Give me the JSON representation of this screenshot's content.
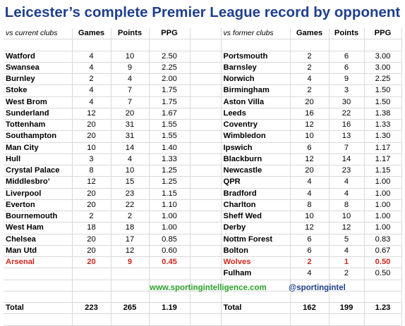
{
  "title": "Leicester’s complete Premier League record by opponent",
  "headers": {
    "current_label": "vs current clubs",
    "former_label": "vs former clubs",
    "games": "Games",
    "points": "Points",
    "ppg": "PPG"
  },
  "current_clubs": [
    {
      "club": "Watford",
      "games": "4",
      "points": "10",
      "ppg": "2.50"
    },
    {
      "club": "Swansea",
      "games": "4",
      "points": "9",
      "ppg": "2.25"
    },
    {
      "club": "Burnley",
      "games": "2",
      "points": "4",
      "ppg": "2.00"
    },
    {
      "club": "Stoke",
      "games": "4",
      "points": "7",
      "ppg": "1.75"
    },
    {
      "club": "West Brom",
      "games": "4",
      "points": "7",
      "ppg": "1.75"
    },
    {
      "club": "Sunderland",
      "games": "12",
      "points": "20",
      "ppg": "1.67"
    },
    {
      "club": "Tottenham",
      "games": "20",
      "points": "31",
      "ppg": "1.55"
    },
    {
      "club": "Southampton",
      "games": "20",
      "points": "31",
      "ppg": "1.55"
    },
    {
      "club": "Man City",
      "games": "10",
      "points": "14",
      "ppg": "1.40"
    },
    {
      "club": "Hull",
      "games": "3",
      "points": "4",
      "ppg": "1.33"
    },
    {
      "club": "Crystal Palace",
      "games": "8",
      "points": "10",
      "ppg": "1.25"
    },
    {
      "club": "Middlesbro’",
      "games": "12",
      "points": "15",
      "ppg": "1.25"
    },
    {
      "club": "Liverpool",
      "games": "20",
      "points": "23",
      "ppg": "1.15"
    },
    {
      "club": "Everton",
      "games": "20",
      "points": "22",
      "ppg": "1.10"
    },
    {
      "club": "Bournemouth",
      "games": "2",
      "points": "2",
      "ppg": "1.00"
    },
    {
      "club": "West Ham",
      "games": "18",
      "points": "18",
      "ppg": "1.00"
    },
    {
      "club": "Chelsea",
      "games": "20",
      "points": "17",
      "ppg": "0.85"
    },
    {
      "club": "Man Utd",
      "games": "20",
      "points": "12",
      "ppg": "0.60"
    },
    {
      "club": "Arsenal",
      "games": "20",
      "points": "9",
      "ppg": "0.45"
    }
  ],
  "former_clubs": [
    {
      "club": "Portsmouth",
      "games": "2",
      "points": "6",
      "ppg": "3.00"
    },
    {
      "club": "Barnsley",
      "games": "2",
      "points": "6",
      "ppg": "3.00"
    },
    {
      "club": "Norwich",
      "games": "4",
      "points": "9",
      "ppg": "2.25"
    },
    {
      "club": "Birmingham",
      "games": "2",
      "points": "3",
      "ppg": "1.50"
    },
    {
      "club": "Aston Villa",
      "games": "20",
      "points": "30",
      "ppg": "1.50"
    },
    {
      "club": "Leeds",
      "games": "16",
      "points": "22",
      "ppg": "1.38"
    },
    {
      "club": "Coventry",
      "games": "12",
      "points": "16",
      "ppg": "1.33"
    },
    {
      "club": "Wimbledon",
      "games": "10",
      "points": "13",
      "ppg": "1.30"
    },
    {
      "club": "Ipswich",
      "games": "6",
      "points": "7",
      "ppg": "1.17"
    },
    {
      "club": "Blackburn",
      "games": "12",
      "points": "14",
      "ppg": "1.17"
    },
    {
      "club": "Newcastle",
      "games": "20",
      "points": "23",
      "ppg": "1.15"
    },
    {
      "club": "QPR",
      "games": "4",
      "points": "4",
      "ppg": "1.00"
    },
    {
      "club": "Bradford",
      "games": "4",
      "points": "4",
      "ppg": "1.00"
    },
    {
      "club": "Charlton",
      "games": "8",
      "points": "8",
      "ppg": "1.00"
    },
    {
      "club": "Sheff Wed",
      "games": "10",
      "points": "10",
      "ppg": "1.00"
    },
    {
      "club": "Derby",
      "games": "12",
      "points": "12",
      "ppg": "1.00"
    },
    {
      "club": "Nottm Forest",
      "games": "6",
      "points": "5",
      "ppg": "0.83"
    },
    {
      "club": "Bolton",
      "games": "6",
      "points": "4",
      "ppg": "0.67"
    },
    {
      "club": "Wolves",
      "games": "2",
      "points": "1",
      "ppg": "0.50"
    },
    {
      "club": "Fulham",
      "games": "4",
      "points": "2",
      "ppg": "0.50"
    }
  ],
  "totals": {
    "label": "Total",
    "current": {
      "games": "223",
      "points": "265",
      "ppg": "1.19"
    },
    "former": {
      "games": "162",
      "points": "199",
      "ppg": "1.23"
    }
  },
  "footer": {
    "site": "www.sportingintelligence.com",
    "handle": "@sportingintel"
  },
  "colors": {
    "title": "#1f3f8f",
    "highlight": "#d0261c",
    "site": "#2ca12c",
    "handle": "#1f3f8f"
  },
  "highlighted_club": "Arsenal"
}
